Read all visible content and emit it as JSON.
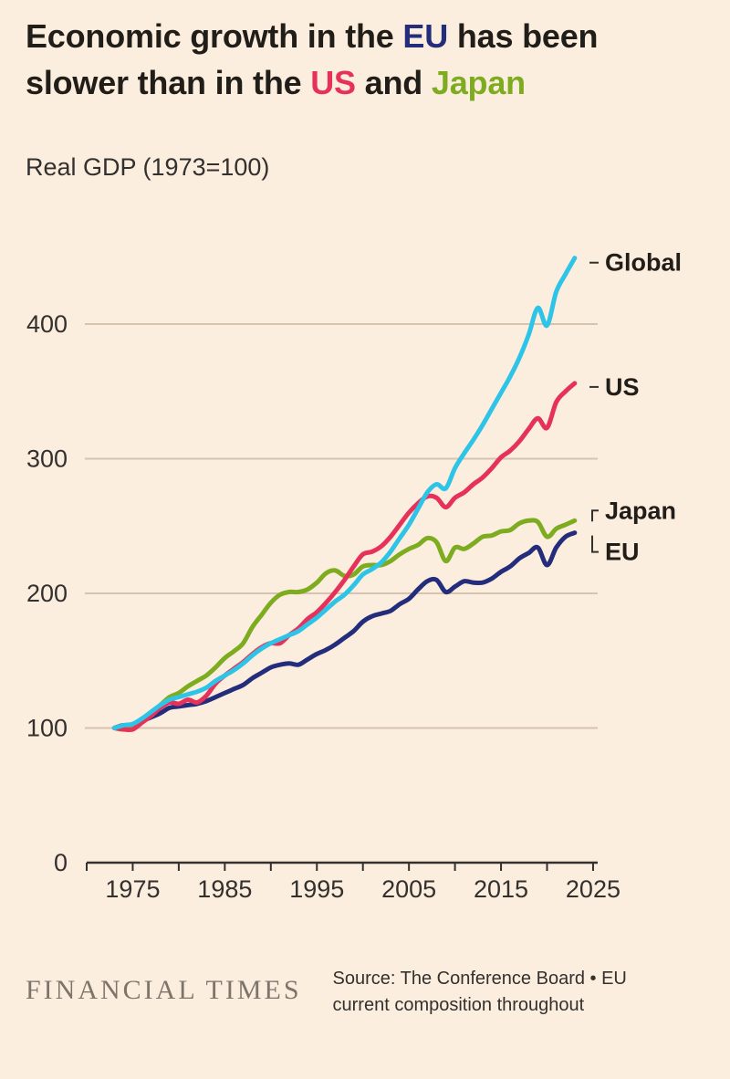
{
  "palette": {
    "background": "#FCEEDE",
    "title_text": "#211D18",
    "axis_text": "#33302E",
    "axis_line": "#33302E",
    "gridline": "#D6C3B0",
    "label_text": "#211D18",
    "connector": "#33302E",
    "brand_text": "#7D756B",
    "source_text": "#33302E",
    "eu": "#232D7C",
    "us": "#E6325A",
    "japan": "#7EAC21",
    "global": "#2DC4E8"
  },
  "title": {
    "s1": "Economic growth in the ",
    "s2": "EU",
    "s3": " has been slower than in the ",
    "s4": "US",
    "s5": " and ",
    "s6": "Japan"
  },
  "subtitle": "Real GDP (1973=100)",
  "footer": {
    "brand": "FINANCIAL TIMES",
    "source": "Source: The Conference Board • EU current composition throughout"
  },
  "chart_data": {
    "type": "line",
    "title": "Economic growth in the EU has been slower than in the US and Japan",
    "subtitle": "Real GDP (1973=100)",
    "grid": "horizontal",
    "legend_position": "right-of-line-ends",
    "ylim": [
      0,
      470
    ],
    "yticks": [
      0,
      100,
      200,
      300,
      400
    ],
    "x_axis_range": [
      1970,
      2025.5
    ],
    "xticks_minor_step": 5,
    "xticks_labeled": [
      1975,
      1985,
      1995,
      2005,
      2015,
      2025
    ],
    "x": [
      1973,
      1974,
      1975,
      1976,
      1977,
      1978,
      1979,
      1980,
      1981,
      1982,
      1983,
      1984,
      1985,
      1986,
      1987,
      1988,
      1989,
      1990,
      1991,
      1992,
      1993,
      1994,
      1995,
      1996,
      1997,
      1998,
      1999,
      2000,
      2001,
      2002,
      2003,
      2004,
      2005,
      2006,
      2007,
      2008,
      2009,
      2010,
      2011,
      2012,
      2013,
      2014,
      2015,
      2016,
      2017,
      2018,
      2019,
      2020,
      2021,
      2022,
      2023
    ],
    "series": [
      {
        "name": "Global",
        "color": "#2DC4E8",
        "values": [
          100,
          102,
          103,
          107,
          112,
          117,
          121,
          123,
          125,
          127,
          130,
          135,
          139,
          143,
          148,
          154,
          159,
          163,
          166,
          169,
          172,
          177,
          182,
          188,
          194,
          199,
          206,
          214,
          218,
          223,
          231,
          241,
          251,
          263,
          275,
          281,
          278,
          293,
          304,
          314,
          325,
          337,
          349,
          361,
          375,
          392,
          412,
          399,
          424,
          437,
          449
        ],
        "end_label": {
          "text": "Global",
          "dy": 5,
          "connector": "dash"
        }
      },
      {
        "name": "US",
        "color": "#E6325A",
        "values": [
          100,
          99,
          99,
          104,
          109,
          115,
          119,
          118,
          121,
          119,
          124,
          133,
          139,
          144,
          149,
          155,
          160,
          163,
          163,
          169,
          174,
          181,
          186,
          193,
          201,
          210,
          220,
          229,
          231,
          235,
          242,
          251,
          260,
          267,
          272,
          271,
          264,
          271,
          275,
          281,
          286,
          293,
          301,
          306,
          313,
          322,
          330,
          323,
          342,
          350,
          356
        ],
        "end_label": {
          "text": "US",
          "dy": 4,
          "connector": "dash"
        }
      },
      {
        "name": "Japan",
        "color": "#7EAC21",
        "values": [
          100,
          99,
          102,
          106,
          111,
          117,
          123,
          126,
          131,
          135,
          139,
          145,
          152,
          157,
          163,
          175,
          184,
          193,
          199,
          201,
          201,
          203,
          208,
          215,
          217,
          213,
          214,
          220,
          221,
          221,
          224,
          229,
          233,
          236,
          241,
          238,
          224,
          234,
          233,
          237,
          242,
          243,
          246,
          247,
          252,
          254,
          253,
          242,
          248,
          251,
          254
        ],
        "end_label": {
          "text": "Japan",
          "dy": -11,
          "connector": "elbow-up"
        }
      },
      {
        "name": "EU",
        "color": "#232D7C",
        "values": [
          100,
          102,
          101,
          105,
          108,
          111,
          115,
          116,
          117,
          118,
          120,
          123,
          126,
          129,
          132,
          137,
          141,
          145,
          147,
          148,
          147,
          151,
          155,
          158,
          162,
          167,
          172,
          179,
          183,
          185,
          187,
          192,
          196,
          203,
          209,
          210,
          201,
          205,
          209,
          208,
          208,
          211,
          216,
          220,
          226,
          230,
          234,
          221,
          234,
          242,
          245
        ],
        "end_label": {
          "text": "EU",
          "dy": 21,
          "connector": "elbow-down"
        }
      }
    ]
  }
}
